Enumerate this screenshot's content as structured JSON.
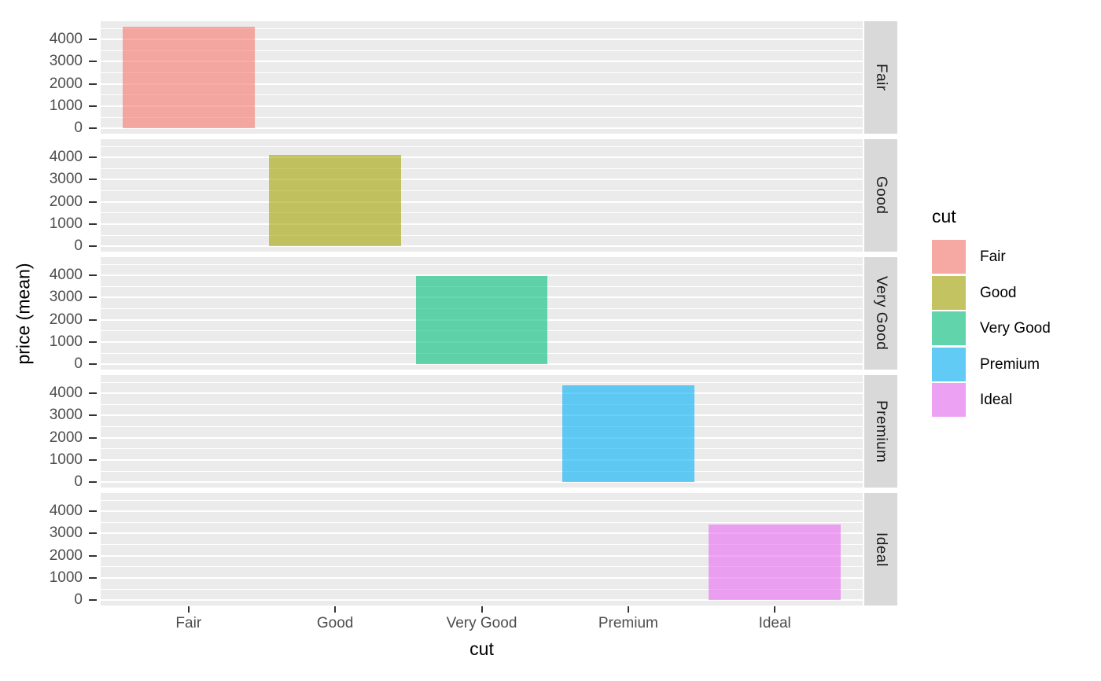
{
  "chart_data": {
    "type": "bar",
    "title": "",
    "xlabel": "cut",
    "ylabel": "price (mean)",
    "categories": [
      "Fair",
      "Good",
      "Very Good",
      "Premium",
      "Ideal"
    ],
    "values": [
      4590,
      4100,
      3980,
      4360,
      3420
    ],
    "facets": [
      "Fair",
      "Good",
      "Very Good",
      "Premium",
      "Ideal"
    ],
    "facet_layout": "rows-right-strips",
    "y_ticks": [
      0,
      1000,
      2000,
      3000,
      4000
    ],
    "y_minor_ticks": [
      500,
      1500,
      2500,
      3500,
      4500
    ],
    "ylim": [
      -240,
      4820
    ],
    "grid": "major-and-minor-white",
    "bar_width_fraction": 0.9,
    "bar_alpha": 0.6,
    "colors": {
      "panel_bg": "#EBEBEB",
      "strip_bg": "#D9D9D9",
      "gridline": "#FFFFFF",
      "axis_text": "#4D4D4D",
      "strip_text": "#1A1A1A",
      "tick_mark": "#333333",
      "series": [
        "#F8766D",
        "#A3A500",
        "#00BF7D",
        "#00B0F6",
        "#E76BF3"
      ]
    },
    "legend": {
      "title": "cut",
      "position": "right",
      "entries": [
        {
          "label": "Fair",
          "color": "#F8766D"
        },
        {
          "label": "Good",
          "color": "#A3A500"
        },
        {
          "label": "Very Good",
          "color": "#00BF7D"
        },
        {
          "label": "Premium",
          "color": "#00B0F6"
        },
        {
          "label": "Ideal",
          "color": "#E76BF3"
        }
      ]
    }
  }
}
